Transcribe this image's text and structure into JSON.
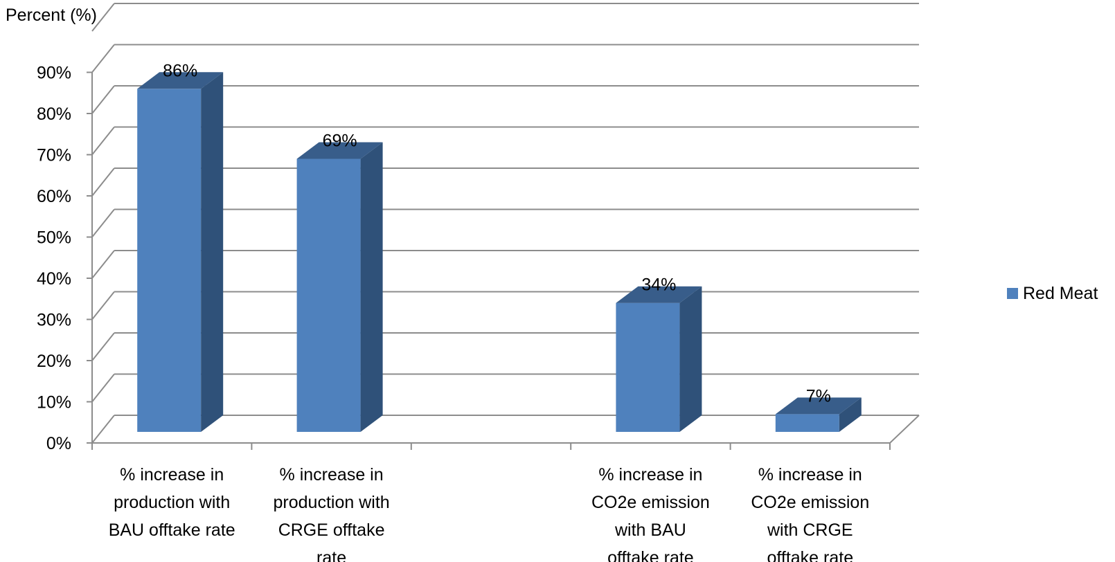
{
  "chart_data": {
    "type": "bar",
    "title": "",
    "ylabel": "Percent (%)",
    "xlabel": "",
    "ylim": [
      0,
      90
    ],
    "yticks": [
      "0%",
      "10%",
      "20%",
      "30%",
      "40%",
      "50%",
      "60%",
      "70%",
      "80%",
      "90%"
    ],
    "categories": [
      [
        "% increase in",
        "production with",
        "BAU offtake rate"
      ],
      [
        "% increase in",
        "production with",
        "CRGE offtake",
        "rate"
      ],
      [],
      [
        "% increase in",
        "CO2e emission",
        "with BAU",
        "offtake rate"
      ],
      [
        "% increase in",
        "CO2e emission",
        "with CRGE",
        "offtake rate"
      ]
    ],
    "series": [
      {
        "name": "Red Meat",
        "values": [
          86,
          69,
          null,
          34,
          7
        ],
        "labels": [
          "86%",
          "69%",
          "",
          "34%",
          "7%"
        ]
      }
    ],
    "grid": true,
    "legend": "right",
    "colors": {
      "bar_front": "#4f81bd",
      "bar_side": "#2f5179",
      "bar_top": "#385d8a",
      "grid": "#8c8c8c",
      "legend_swatch": "#4f81bd"
    }
  }
}
